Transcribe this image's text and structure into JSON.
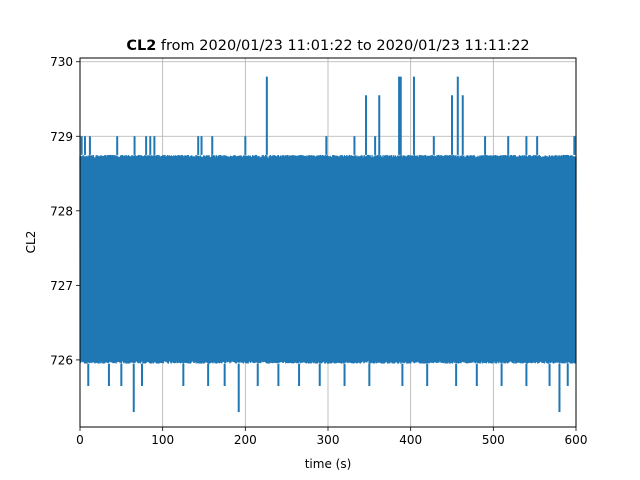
{
  "chart_data": {
    "type": "line",
    "title_bold": "CL2",
    "title_rest": " from 2020/01/23 11:01:22 to 2020/01/23 11:11:22",
    "xlabel": "time (s)",
    "ylabel": "CL2",
    "xlim": [
      0,
      600
    ],
    "ylim": [
      725.1,
      730.05
    ],
    "x_ticks": [
      0,
      100,
      200,
      300,
      400,
      500,
      600
    ],
    "y_ticks": [
      726,
      727,
      728,
      729,
      730
    ],
    "grid": true,
    "series_color": "#1f77b4",
    "band": {
      "low": 725.95,
      "high": 728.75
    },
    "outliers_high": [
      {
        "x": 2,
        "y": 729.0
      },
      {
        "x": 6,
        "y": 729.0
      },
      {
        "x": 12,
        "y": 729.0
      },
      {
        "x": 45,
        "y": 729.0
      },
      {
        "x": 66,
        "y": 729.0
      },
      {
        "x": 80,
        "y": 729.0
      },
      {
        "x": 85,
        "y": 729.0
      },
      {
        "x": 90,
        "y": 729.0
      },
      {
        "x": 143,
        "y": 729.0
      },
      {
        "x": 147,
        "y": 729.0
      },
      {
        "x": 160,
        "y": 729.0
      },
      {
        "x": 200,
        "y": 729.0
      },
      {
        "x": 226,
        "y": 729.8
      },
      {
        "x": 298,
        "y": 729.0
      },
      {
        "x": 332,
        "y": 729.0
      },
      {
        "x": 346,
        "y": 729.55
      },
      {
        "x": 357,
        "y": 729.0
      },
      {
        "x": 362,
        "y": 729.55
      },
      {
        "x": 386,
        "y": 729.8
      },
      {
        "x": 388,
        "y": 729.8
      },
      {
        "x": 404,
        "y": 729.8
      },
      {
        "x": 428,
        "y": 729.0
      },
      {
        "x": 450,
        "y": 729.55
      },
      {
        "x": 457,
        "y": 729.8
      },
      {
        "x": 463,
        "y": 729.55
      },
      {
        "x": 490,
        "y": 729.0
      },
      {
        "x": 518,
        "y": 729.0
      },
      {
        "x": 540,
        "y": 729.0
      },
      {
        "x": 553,
        "y": 729.0
      },
      {
        "x": 598,
        "y": 729.0
      }
    ],
    "outliers_low": [
      {
        "x": 10,
        "y": 725.65
      },
      {
        "x": 35,
        "y": 725.65
      },
      {
        "x": 50,
        "y": 725.65
      },
      {
        "x": 65,
        "y": 725.3
      },
      {
        "x": 75,
        "y": 725.65
      },
      {
        "x": 125,
        "y": 725.65
      },
      {
        "x": 155,
        "y": 725.65
      },
      {
        "x": 175,
        "y": 725.65
      },
      {
        "x": 192,
        "y": 725.3
      },
      {
        "x": 215,
        "y": 725.65
      },
      {
        "x": 240,
        "y": 725.65
      },
      {
        "x": 265,
        "y": 725.65
      },
      {
        "x": 290,
        "y": 725.65
      },
      {
        "x": 320,
        "y": 725.65
      },
      {
        "x": 350,
        "y": 725.65
      },
      {
        "x": 390,
        "y": 725.65
      },
      {
        "x": 420,
        "y": 725.65
      },
      {
        "x": 455,
        "y": 725.65
      },
      {
        "x": 480,
        "y": 725.65
      },
      {
        "x": 510,
        "y": 725.65
      },
      {
        "x": 540,
        "y": 725.65
      },
      {
        "x": 568,
        "y": 725.65
      },
      {
        "x": 580,
        "y": 725.3
      },
      {
        "x": 590,
        "y": 725.65
      }
    ]
  }
}
